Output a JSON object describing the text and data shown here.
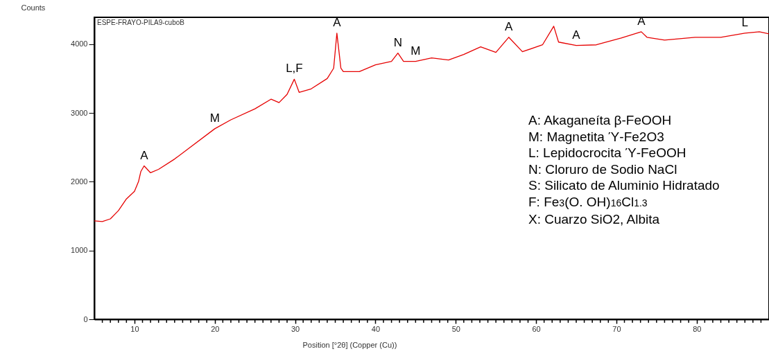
{
  "chart_data": {
    "type": "line",
    "xlabel": "Position [°2θ] (Copper (Cu))",
    "ylabel": "Counts",
    "xlim": [
      5,
      89
    ],
    "ylim": [
      0,
      4390
    ],
    "xticks": [
      {
        "value": 6,
        "label": null
      },
      {
        "value": 7,
        "label": null
      },
      {
        "value": 8,
        "label": null
      },
      {
        "value": 9,
        "label": null
      },
      10,
      {
        "value": 11,
        "label": null
      },
      {
        "value": 12,
        "label": null
      },
      {
        "value": 13,
        "label": null
      },
      {
        "value": 14,
        "label": null
      },
      {
        "value": 15,
        "label": null
      },
      {
        "value": 16,
        "label": null
      },
      {
        "value": 17,
        "label": null
      },
      {
        "value": 18,
        "label": null
      },
      {
        "value": 19,
        "label": null
      },
      20,
      {
        "value": 21,
        "label": null
      },
      {
        "value": 22,
        "label": null
      },
      {
        "value": 23,
        "label": null
      },
      {
        "value": 24,
        "label": null
      },
      {
        "value": 25,
        "label": null
      },
      {
        "value": 26,
        "label": null
      },
      {
        "value": 27,
        "label": null
      },
      {
        "value": 28,
        "label": null
      },
      {
        "value": 29,
        "label": null
      },
      30,
      {
        "value": 31,
        "label": null
      },
      {
        "value": 32,
        "label": null
      },
      {
        "value": 33,
        "label": null
      },
      {
        "value": 34,
        "label": null
      },
      {
        "value": 35,
        "label": null
      },
      {
        "value": 36,
        "label": null
      },
      {
        "value": 37,
        "label": null
      },
      {
        "value": 38,
        "label": null
      },
      {
        "value": 39,
        "label": null
      },
      40,
      {
        "value": 41,
        "label": null
      },
      {
        "value": 42,
        "label": null
      },
      {
        "value": 43,
        "label": null
      },
      {
        "value": 44,
        "label": null
      },
      {
        "value": 45,
        "label": null
      },
      {
        "value": 46,
        "label": null
      },
      {
        "value": 47,
        "label": null
      },
      {
        "value": 48,
        "label": null
      },
      {
        "value": 49,
        "label": null
      },
      50,
      {
        "value": 51,
        "label": null
      },
      {
        "value": 52,
        "label": null
      },
      {
        "value": 53,
        "label": null
      },
      {
        "value": 54,
        "label": null
      },
      {
        "value": 55,
        "label": null
      },
      {
        "value": 56,
        "label": null
      },
      {
        "value": 57,
        "label": null
      },
      {
        "value": 58,
        "label": null
      },
      {
        "value": 59,
        "label": null
      },
      60,
      {
        "value": 61,
        "label": null
      },
      {
        "value": 62,
        "label": null
      },
      {
        "value": 63,
        "label": null
      },
      {
        "value": 64,
        "label": null
      },
      {
        "value": 65,
        "label": null
      },
      {
        "value": 66,
        "label": null
      },
      {
        "value": 67,
        "label": null
      },
      {
        "value": 68,
        "label": null
      },
      {
        "value": 69,
        "label": null
      },
      70,
      {
        "value": 71,
        "label": null
      },
      {
        "value": 72,
        "label": null
      },
      {
        "value": 73,
        "label": null
      },
      {
        "value": 74,
        "label": null
      },
      {
        "value": 75,
        "label": null
      },
      {
        "value": 76,
        "label": null
      },
      {
        "value": 77,
        "label": null
      },
      {
        "value": 78,
        "label": null
      },
      {
        "value": 79,
        "label": null
      },
      80,
      {
        "value": 81,
        "label": null
      },
      {
        "value": 82,
        "label": null
      },
      {
        "value": 83,
        "label": null
      },
      {
        "value": 84,
        "label": null
      },
      {
        "value": 85,
        "label": null
      },
      {
        "value": 86,
        "label": null
      },
      {
        "value": 87,
        "label": null
      },
      {
        "value": 88,
        "label": null
      }
    ],
    "yticks": [
      0,
      1000,
      2000,
      3000,
      4000
    ],
    "grid": false,
    "marker": "none",
    "line_style": "solid",
    "series": [
      {
        "color": "#e60000",
        "x": [
          5,
          6,
          7,
          8,
          9,
          10,
          10.5,
          10.8,
          11.2,
          12,
          13,
          15,
          16.7,
          20,
          22,
          25,
          27,
          28,
          29,
          29.9,
          30.5,
          32,
          34,
          34.8,
          35.2,
          35.7,
          36,
          38,
          40,
          42,
          42.8,
          43.5,
          45,
          47,
          49.1,
          51,
          53.1,
          55,
          56.6,
          58.3,
          60.8,
          62.2,
          62.8,
          65,
          67.5,
          70.6,
          73.1,
          73.8,
          76,
          79.8,
          83,
          86,
          87.8,
          89
        ],
        "values": [
          1430,
          1420,
          1460,
          1580,
          1750,
          1860,
          2000,
          2150,
          2230,
          2130,
          2180,
          2330,
          2480,
          2770,
          2900,
          3060,
          3200,
          3150,
          3270,
          3490,
          3300,
          3350,
          3500,
          3650,
          4160,
          3650,
          3600,
          3600,
          3700,
          3750,
          3870,
          3750,
          3750,
          3800,
          3770,
          3850,
          3960,
          3880,
          4100,
          3890,
          3990,
          4260,
          4030,
          3980,
          3990,
          4090,
          4180,
          4100,
          4060,
          4100,
          4100,
          4160,
          4180,
          4150
        ]
      }
    ],
    "annotations": [
      {
        "text": "A",
        "x": 11.2,
        "y": 2230
      },
      {
        "text": "M",
        "x": 20,
        "y": 2770
      },
      {
        "text": "L,F",
        "x": 29.9,
        "y": 3490
      },
      {
        "text": "A",
        "x": 35.2,
        "y": 4160
      },
      {
        "text": "N",
        "x": 42.8,
        "y": 3870
      },
      {
        "text": "M",
        "x": 45,
        "y": 3750
      },
      {
        "text": "A",
        "x": 56.6,
        "y": 4100
      },
      {
        "text": "A",
        "x": 65,
        "y": 3980
      },
      {
        "text": "A",
        "x": 73.1,
        "y": 4180
      },
      {
        "text": "L",
        "x": 86,
        "y": 4160
      },
      "ESPE-FRAYO-PILA9-cuboB",
      "A: Akaganeíta β-FeOOH",
      "M: Magnetita Ύ-Fe2O3",
      "L: Lepidocrocita Ύ-FeOOH",
      "N: Cloruro de Sodio NaCl",
      "S: Silicato de Aluminio Hidratado",
      "F: Fe$_{3}$(O. OH)$_{16}$Cl$_{1.3}$",
      "X: Cuarzo SiO2, Albita"
    ]
  }
}
